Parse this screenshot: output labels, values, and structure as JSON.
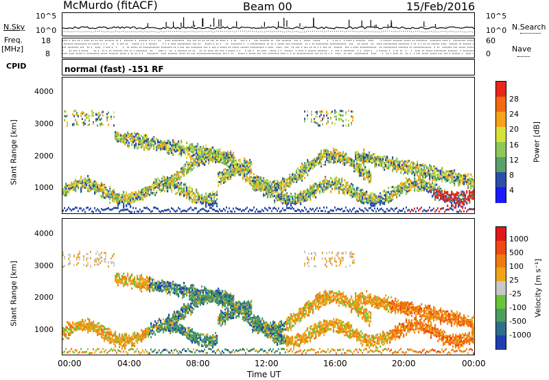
{
  "header": {
    "station": "McMurdo (fitACF)",
    "beam": "Beam 00",
    "date": "15/Feb/2016"
  },
  "top_panels": {
    "nsky_label": "N.Sky",
    "nsky_ticks": [
      "10^5",
      "10^0"
    ],
    "nsearch_label": "N.Search",
    "nsearch_ticks": [
      "10^5",
      "10^0"
    ],
    "freq_label_line1": "Freq.",
    "freq_label_line2": "[MHz]",
    "freq_ticks": [
      "18",
      "8"
    ],
    "nave_label": "Nave",
    "nave_ticks": [
      "60",
      "0"
    ],
    "cpid_label": "CPID",
    "cpid_text": "normal (fast) -151 RF"
  },
  "x_axis": {
    "ticks": [
      "00:00",
      "04:00",
      "08:00",
      "12:00",
      "16:00",
      "20:00",
      "00:00"
    ],
    "label": "Time UT"
  },
  "chart_data": [
    {
      "type": "heatmap",
      "ylabel": "Slant Range [km]",
      "yticks": [
        "4000",
        "3000",
        "2000",
        "1000"
      ],
      "ylim": [
        180,
        4500
      ],
      "xlim": [
        0,
        24
      ],
      "colorbar": {
        "label": "Power [dB]",
        "ticks": [
          "28",
          "24",
          "20",
          "16",
          "12",
          "8",
          "4"
        ],
        "colors": [
          "#1b1bff",
          "#2b4fa8",
          "#5aa06a",
          "#8ec85a",
          "#d6e23a",
          "#f6a21a",
          "#f26a12",
          "#e8281a"
        ]
      }
    },
    {
      "type": "heatmap",
      "ylabel": "Velocity [m s-1]",
      "ylabel_axis": "Slant Range [km]",
      "yticks": [
        "4000",
        "3000",
        "2000",
        "1000"
      ],
      "ylim": [
        180,
        4500
      ],
      "xlim": [
        0,
        24
      ],
      "colorbar": {
        "label": "Velocity [m s⁻¹]",
        "ticks": [
          "1000",
          "500",
          "100",
          "25",
          "-25",
          "-100",
          "-500",
          "-1000"
        ],
        "colors": [
          "#1f3fb0",
          "#2e6f8a",
          "#4c9e5e",
          "#6ac43a",
          "#c8c8c8",
          "#f0a41a",
          "#f07a12",
          "#ec4a12",
          "#e01818"
        ]
      }
    }
  ]
}
